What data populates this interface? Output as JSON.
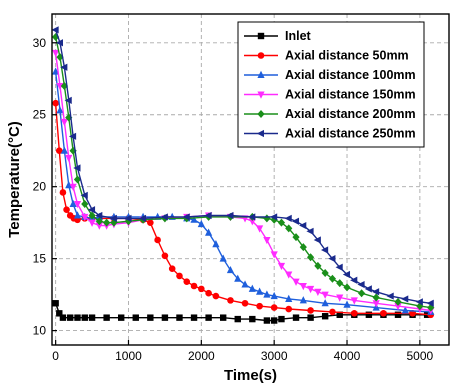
{
  "chart_data": {
    "type": "line",
    "xlabel": "Time(s)",
    "ylabel": "Temperature(°C)",
    "xlim": [
      -50,
      5400
    ],
    "ylim": [
      9,
      32
    ],
    "x_ticks": [
      0,
      1000,
      2000,
      3000,
      4000,
      5000
    ],
    "y_ticks": [
      10,
      15,
      20,
      25,
      30
    ],
    "grid": true,
    "legend_position": "top-right",
    "series": [
      {
        "name": "Inlet",
        "color": "#000000",
        "marker": "square",
        "x": [
          0,
          50,
          100,
          200,
          300,
          400,
          500,
          700,
          900,
          1100,
          1300,
          1500,
          1700,
          1900,
          2100,
          2300,
          2500,
          2700,
          2900,
          3000,
          3100,
          3300,
          3500,
          3700,
          3900,
          4100,
          4300,
          4500,
          4700,
          4900,
          5100
        ],
        "y": [
          11.9,
          11.2,
          10.9,
          10.9,
          10.9,
          10.9,
          10.9,
          10.9,
          10.9,
          10.9,
          10.9,
          10.9,
          10.9,
          10.9,
          10.9,
          10.9,
          10.8,
          10.8,
          10.7,
          10.7,
          10.8,
          10.9,
          10.9,
          11.0,
          11.1,
          11.1,
          11.1,
          11.1,
          11.1,
          11.1,
          11.1
        ]
      },
      {
        "name": "Axial distance 50mm",
        "color": "#ff0000",
        "marker": "circle",
        "x": [
          0,
          50,
          100,
          150,
          200,
          250,
          300,
          400,
          500,
          600,
          800,
          1000,
          1200,
          1300,
          1400,
          1500,
          1600,
          1700,
          1800,
          1900,
          2000,
          2100,
          2200,
          2400,
          2600,
          2800,
          3000,
          3200,
          3500,
          3800,
          4100,
          4500,
          4900,
          5150
        ],
        "y": [
          25.8,
          22.5,
          19.6,
          18.4,
          18.0,
          17.8,
          17.7,
          17.8,
          17.8,
          17.8,
          17.8,
          17.8,
          17.7,
          17.5,
          16.3,
          15.2,
          14.3,
          13.8,
          13.4,
          13.1,
          12.9,
          12.6,
          12.4,
          12.1,
          11.9,
          11.7,
          11.6,
          11.5,
          11.4,
          11.3,
          11.2,
          11.2,
          11.2,
          11.1
        ]
      },
      {
        "name": "Axial distance 100mm",
        "color": "#1f5fdc",
        "marker": "triangle-up",
        "x": [
          0,
          60,
          120,
          180,
          240,
          300,
          400,
          500,
          600,
          800,
          1000,
          1200,
          1400,
          1600,
          1800,
          1900,
          2000,
          2100,
          2200,
          2300,
          2400,
          2500,
          2600,
          2700,
          2800,
          2900,
          3000,
          3200,
          3400,
          3700,
          4000,
          4400,
          4800,
          5150
        ],
        "y": [
          28.0,
          25.3,
          22.5,
          20.1,
          18.8,
          18.0,
          17.9,
          17.8,
          17.9,
          17.9,
          17.9,
          17.9,
          17.9,
          17.9,
          17.8,
          17.7,
          17.4,
          16.8,
          16.0,
          15.0,
          14.2,
          13.6,
          13.2,
          12.9,
          12.7,
          12.5,
          12.4,
          12.2,
          12.1,
          11.9,
          11.8,
          11.6,
          11.4,
          11.3
        ]
      },
      {
        "name": "Axial distance 150mm",
        "color": "#ff2bff",
        "marker": "triangle-down",
        "x": [
          0,
          60,
          120,
          180,
          240,
          300,
          400,
          500,
          600,
          700,
          800,
          1000,
          1200,
          1500,
          1800,
          2100,
          2400,
          2600,
          2700,
          2800,
          2900,
          3000,
          3100,
          3200,
          3300,
          3400,
          3500,
          3600,
          3700,
          3900,
          4100,
          4400,
          4700,
          5000,
          5150
        ],
        "y": [
          29.3,
          27.0,
          24.5,
          22.0,
          20.0,
          18.8,
          17.9,
          17.5,
          17.3,
          17.3,
          17.4,
          17.5,
          17.7,
          17.8,
          17.9,
          18.0,
          17.9,
          17.8,
          17.6,
          17.1,
          16.3,
          15.3,
          14.5,
          13.9,
          13.4,
          13.1,
          12.9,
          12.7,
          12.5,
          12.3,
          12.1,
          11.9,
          11.7,
          11.5,
          11.4
        ]
      },
      {
        "name": "Axial distance 200mm",
        "color": "#1a8f1a",
        "marker": "diamond",
        "x": [
          0,
          60,
          120,
          180,
          240,
          300,
          400,
          500,
          600,
          700,
          800,
          1000,
          1200,
          1500,
          1800,
          2100,
          2400,
          2700,
          2900,
          3000,
          3100,
          3200,
          3300,
          3400,
          3500,
          3600,
          3700,
          3800,
          3900,
          4000,
          4200,
          4400,
          4700,
          5000,
          5150
        ],
        "y": [
          30.4,
          29.0,
          27.0,
          24.8,
          22.5,
          20.5,
          18.8,
          18.0,
          17.6,
          17.5,
          17.5,
          17.6,
          17.7,
          17.8,
          17.8,
          17.9,
          17.9,
          17.9,
          17.8,
          17.7,
          17.5,
          17.1,
          16.5,
          15.8,
          15.1,
          14.5,
          14.0,
          13.6,
          13.3,
          13.0,
          12.6,
          12.3,
          12.0,
          11.7,
          11.6
        ]
      },
      {
        "name": "Axial distance 250mm",
        "color": "#1a2a8c",
        "marker": "triangle-left",
        "x": [
          0,
          60,
          120,
          180,
          240,
          300,
          400,
          500,
          600,
          800,
          1000,
          1200,
          1500,
          1800,
          2100,
          2400,
          2700,
          3000,
          3200,
          3300,
          3400,
          3500,
          3600,
          3700,
          3800,
          3900,
          4000,
          4100,
          4200,
          4300,
          4400,
          4600,
          4800,
          5000,
          5150
        ],
        "y": [
          30.9,
          30.0,
          28.3,
          26.0,
          23.5,
          21.3,
          19.4,
          18.4,
          18.0,
          17.8,
          17.8,
          17.8,
          17.9,
          17.9,
          18.0,
          18.0,
          17.9,
          17.9,
          17.8,
          17.6,
          17.3,
          16.9,
          16.3,
          15.6,
          15.0,
          14.4,
          13.9,
          13.5,
          13.2,
          12.9,
          12.7,
          12.4,
          12.2,
          12.0,
          11.9
        ]
      }
    ]
  }
}
